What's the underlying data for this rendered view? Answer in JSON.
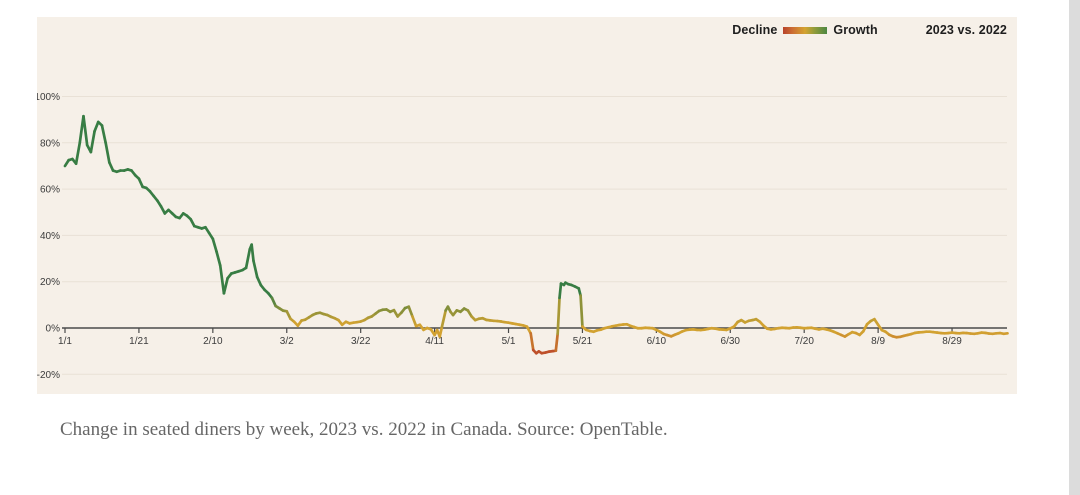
{
  "legend": {
    "decline_label": "Decline",
    "growth_label": "Growth",
    "comparison_label": "2023 vs. 2022"
  },
  "caption": {
    "text": "Change in seated diners by week, 2023 vs. 2022 in Canada. Source: OpenTable."
  },
  "colors": {
    "panel_background": "#f6f0e8",
    "gridline": "#e9e1d6",
    "axis": "#4a4a4a",
    "tick_text": "#3b3b3b",
    "caption_text": "#666666",
    "scrollbar": "#dcdcdc"
  },
  "chart_data": {
    "type": "line",
    "title": "",
    "xlabel": "",
    "ylabel": "",
    "grid": true,
    "legend_position": "top-right",
    "x_unit": "days since 1/1/2023",
    "ylim": [
      -28,
      112
    ],
    "xlim_days": [
      0,
      256
    ],
    "y_ticks": [
      {
        "value": 100,
        "label": "100%"
      },
      {
        "value": 80,
        "label": "80%"
      },
      {
        "value": 60,
        "label": "60%"
      },
      {
        "value": 40,
        "label": "40%"
      },
      {
        "value": 20,
        "label": "20%"
      },
      {
        "value": 0,
        "label": "0%"
      },
      {
        "value": -20,
        "label": "-20%"
      }
    ],
    "x_ticks": [
      {
        "day": 0,
        "label": "1/1"
      },
      {
        "day": 20,
        "label": "1/21"
      },
      {
        "day": 40,
        "label": "2/10"
      },
      {
        "day": 60,
        "label": "3/2"
      },
      {
        "day": 80,
        "label": "3/22"
      },
      {
        "day": 100,
        "label": "4/11"
      },
      {
        "day": 120,
        "label": "5/1"
      },
      {
        "day": 140,
        "label": "5/21"
      },
      {
        "day": 160,
        "label": "6/10"
      },
      {
        "day": 180,
        "label": "6/30"
      },
      {
        "day": 200,
        "label": "7/20"
      },
      {
        "day": 220,
        "label": "8/9"
      },
      {
        "day": 240,
        "label": "8/29"
      }
    ],
    "color_scale": {
      "decline": "#be502a",
      "neutral": "#d2a231",
      "growth": "#387d44",
      "stops_pct": [
        -9,
        -2,
        2,
        14
      ]
    },
    "series": [
      {
        "name": "Change in seated diners (%), 2023 vs. 2022, Canada",
        "points": [
          [
            0,
            70
          ],
          [
            1,
            72.5
          ],
          [
            2,
            73
          ],
          [
            3,
            71
          ],
          [
            4,
            80
          ],
          [
            5,
            91.5
          ],
          [
            6,
            79
          ],
          [
            7,
            76
          ],
          [
            8,
            85
          ],
          [
            9,
            89
          ],
          [
            10,
            87.5
          ],
          [
            11,
            80
          ],
          [
            12,
            71.5
          ],
          [
            13,
            68
          ],
          [
            14,
            67.5
          ],
          [
            15,
            68
          ],
          [
            16,
            68
          ],
          [
            17,
            68.5
          ],
          [
            18,
            68
          ],
          [
            19,
            66
          ],
          [
            20,
            64.5
          ],
          [
            21,
            61
          ],
          [
            22,
            60.5
          ],
          [
            23,
            59
          ],
          [
            24,
            57
          ],
          [
            25,
            55
          ],
          [
            26,
            52.5
          ],
          [
            27,
            49.5
          ],
          [
            28,
            51
          ],
          [
            29,
            49.5
          ],
          [
            30,
            48
          ],
          [
            31,
            47.5
          ],
          [
            32,
            49.5
          ],
          [
            33,
            48.5
          ],
          [
            34,
            47
          ],
          [
            35,
            44
          ],
          [
            36,
            43.5
          ],
          [
            37,
            43
          ],
          [
            38,
            43.5
          ],
          [
            39,
            41
          ],
          [
            40,
            38.5
          ],
          [
            41,
            33
          ],
          [
            42,
            27
          ],
          [
            43,
            15
          ],
          [
            44,
            21.5
          ],
          [
            45,
            23.5
          ],
          [
            46,
            24
          ],
          [
            47,
            24.5
          ],
          [
            48,
            25
          ],
          [
            49,
            26
          ],
          [
            50,
            34
          ],
          [
            50.5,
            36
          ],
          [
            51,
            29
          ],
          [
            52,
            22
          ],
          [
            53,
            18.5
          ],
          [
            54,
            16.5
          ],
          [
            55,
            15
          ],
          [
            56,
            13
          ],
          [
            57,
            9.5
          ],
          [
            58,
            8.5
          ],
          [
            59,
            7.5
          ],
          [
            60,
            7.2
          ],
          [
            61,
            4
          ],
          [
            62,
            2.7
          ],
          [
            63,
            1
          ],
          [
            64,
            3.2
          ],
          [
            65,
            3.6
          ],
          [
            66,
            4.6
          ],
          [
            67,
            5.6
          ],
          [
            68,
            6.3
          ],
          [
            69,
            6.6
          ],
          [
            70,
            6
          ],
          [
            71,
            5.6
          ],
          [
            72,
            4.8
          ],
          [
            73,
            4.2
          ],
          [
            74,
            3.4
          ],
          [
            75,
            1.4
          ],
          [
            76,
            2.7
          ],
          [
            77,
            2
          ],
          [
            78,
            2.3
          ],
          [
            79,
            2.5
          ],
          [
            80,
            2.8
          ],
          [
            81,
            3.4
          ],
          [
            82,
            4.4
          ],
          [
            83,
            5
          ],
          [
            84,
            6.2
          ],
          [
            85,
            7.4
          ],
          [
            86,
            7.9
          ],
          [
            87,
            8
          ],
          [
            88,
            7
          ],
          [
            89,
            7.7
          ],
          [
            90,
            5
          ],
          [
            91,
            6.6
          ],
          [
            92,
            8.6
          ],
          [
            93,
            9.2
          ],
          [
            94,
            5
          ],
          [
            95,
            0.8
          ],
          [
            96,
            1.4
          ],
          [
            97,
            -0.8
          ],
          [
            98,
            0
          ],
          [
            99,
            -0.6
          ],
          [
            100,
            -3
          ],
          [
            100.7,
            -0.9
          ],
          [
            101.4,
            -3.7
          ],
          [
            102,
            0.6
          ],
          [
            103,
            7.6
          ],
          [
            103.6,
            9.2
          ],
          [
            104.3,
            7
          ],
          [
            105,
            5.6
          ],
          [
            106,
            7.6
          ],
          [
            107,
            7
          ],
          [
            108,
            8.4
          ],
          [
            109,
            7.6
          ],
          [
            110,
            5
          ],
          [
            111,
            3.4
          ],
          [
            112,
            4
          ],
          [
            113,
            4.2
          ],
          [
            114,
            3.5
          ],
          [
            115,
            3.3
          ],
          [
            116,
            3.1
          ],
          [
            117,
            3
          ],
          [
            118,
            2.8
          ],
          [
            119,
            2.5
          ],
          [
            120,
            2.3
          ],
          [
            121,
            2
          ],
          [
            122,
            1.7
          ],
          [
            123,
            1.4
          ],
          [
            124,
            1.1
          ],
          [
            125,
            0.6
          ],
          [
            126,
            -2.3
          ],
          [
            126.7,
            -9.5
          ],
          [
            127.5,
            -10.9
          ],
          [
            128.2,
            -10.1
          ],
          [
            129,
            -10.9
          ],
          [
            130,
            -10.6
          ],
          [
            131,
            -10.2
          ],
          [
            132,
            -10
          ],
          [
            132.8,
            -9.8
          ],
          [
            133.3,
            -2.5
          ],
          [
            133.8,
            13
          ],
          [
            134.2,
            19.2
          ],
          [
            135,
            18.6
          ],
          [
            135.4,
            19.6
          ],
          [
            136.2,
            18.9
          ],
          [
            137,
            18.6
          ],
          [
            138,
            17.9
          ],
          [
            139,
            17.1
          ],
          [
            139.5,
            14
          ],
          [
            140,
            0.6
          ],
          [
            141,
            -0.8
          ],
          [
            142,
            -1.3
          ],
          [
            143,
            -1.6
          ],
          [
            144,
            -1
          ],
          [
            145,
            -0.7
          ],
          [
            146,
            -0.1
          ],
          [
            147,
            0.3
          ],
          [
            148,
            0.7
          ],
          [
            149,
            1
          ],
          [
            150,
            1.3
          ],
          [
            151,
            1.5
          ],
          [
            152,
            1.6
          ],
          [
            153,
            0.9
          ],
          [
            154,
            0.4
          ],
          [
            155,
            -0.1
          ],
          [
            156,
            -0.1
          ],
          [
            157,
            0.1
          ],
          [
            158,
            0
          ],
          [
            159,
            -0.1
          ],
          [
            160,
            -0.8
          ],
          [
            161,
            -1.6
          ],
          [
            162,
            -2.6
          ],
          [
            163,
            -3.1
          ],
          [
            164,
            -3.6
          ],
          [
            165,
            -2.9
          ],
          [
            166,
            -2.3
          ],
          [
            167,
            -1.5
          ],
          [
            168,
            -0.9
          ],
          [
            169,
            -0.7
          ],
          [
            170,
            -0.6
          ],
          [
            171,
            -0.8
          ],
          [
            172,
            -0.9
          ],
          [
            173,
            -0.7
          ],
          [
            174,
            -0.4
          ],
          [
            175,
            -0.1
          ],
          [
            176,
            -0.3
          ],
          [
            177,
            -0.6
          ],
          [
            178,
            -0.7
          ],
          [
            179,
            -0.8
          ],
          [
            180,
            -0.2
          ],
          [
            181,
            0.6
          ],
          [
            182,
            2.6
          ],
          [
            183,
            3.4
          ],
          [
            184,
            2.4
          ],
          [
            185,
            3.1
          ],
          [
            186,
            3.4
          ],
          [
            187,
            3.8
          ],
          [
            188,
            2.7
          ],
          [
            189,
            1
          ],
          [
            190,
            -0.3
          ],
          [
            191,
            -0.6
          ],
          [
            192,
            -0.4
          ],
          [
            193,
            -0.1
          ],
          [
            194,
            0.1
          ],
          [
            195,
            0
          ],
          [
            196,
            -0.1
          ],
          [
            197,
            0.2
          ],
          [
            198,
            0.3
          ],
          [
            199,
            0.1
          ],
          [
            200,
            -0.1
          ],
          [
            201,
            0
          ],
          [
            202,
            0.1
          ],
          [
            203,
            -0.3
          ],
          [
            204,
            -0.6
          ],
          [
            205,
            -0.3
          ],
          [
            206,
            -0.6
          ],
          [
            207,
            -1
          ],
          [
            208,
            -1.6
          ],
          [
            209,
            -2.3
          ],
          [
            210,
            -3
          ],
          [
            211,
            -3.7
          ],
          [
            212,
            -2.7
          ],
          [
            213,
            -1.8
          ],
          [
            214,
            -2.2
          ],
          [
            215,
            -3
          ],
          [
            216,
            -1.4
          ],
          [
            217,
            1.6
          ],
          [
            218,
            3
          ],
          [
            219,
            3.8
          ],
          [
            220,
            1.4
          ],
          [
            221,
            -0.9
          ],
          [
            222,
            -1.6
          ],
          [
            223,
            -2.9
          ],
          [
            224,
            -3.6
          ],
          [
            225,
            -4
          ],
          [
            226,
            -3.8
          ],
          [
            227,
            -3.4
          ],
          [
            228,
            -3
          ],
          [
            229,
            -2.6
          ],
          [
            230,
            -2.1
          ],
          [
            231,
            -1.9
          ],
          [
            232,
            -1.8
          ],
          [
            233,
            -1.6
          ],
          [
            234,
            -1.6
          ],
          [
            235,
            -1.8
          ],
          [
            236,
            -2
          ],
          [
            237,
            -2.2
          ],
          [
            238,
            -2.3
          ],
          [
            239,
            -2.2
          ],
          [
            240,
            -2
          ],
          [
            241,
            -2.2
          ],
          [
            242,
            -2.3
          ],
          [
            243,
            -2.1
          ],
          [
            244,
            -2.2
          ],
          [
            245,
            -2.4
          ],
          [
            246,
            -2.5
          ],
          [
            247,
            -2.3
          ],
          [
            248,
            -2
          ],
          [
            249,
            -2.1
          ],
          [
            250,
            -2.4
          ],
          [
            251,
            -2.5
          ],
          [
            252,
            -2.3
          ],
          [
            253,
            -2.2
          ],
          [
            254,
            -2.5
          ],
          [
            255,
            -2.3
          ]
        ]
      }
    ]
  }
}
